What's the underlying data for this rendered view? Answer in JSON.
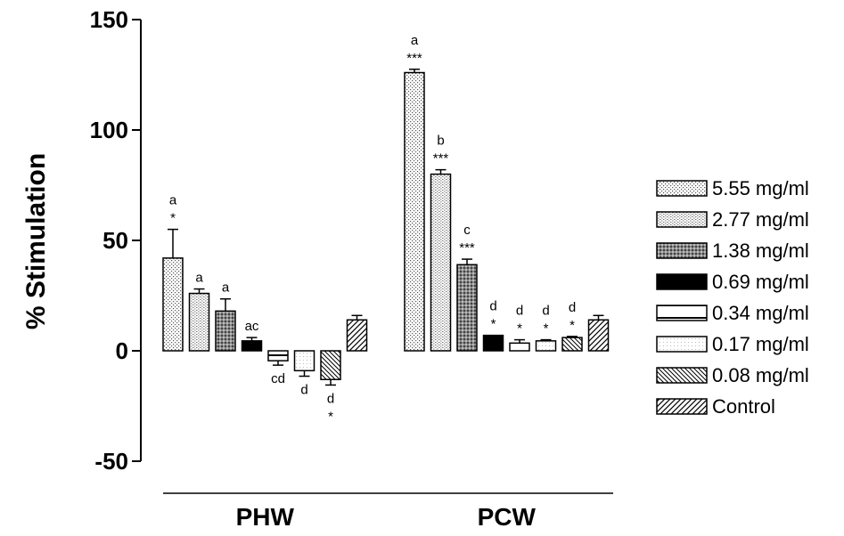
{
  "chart_data": {
    "type": "bar",
    "ylabel": "% Stimulation",
    "ylim": [
      -50,
      150
    ],
    "yticks": [
      "150",
      "100",
      "50",
      "0",
      "-50"
    ],
    "grid": false,
    "legend_position": "right",
    "categories": [
      "PHW",
      "PCW"
    ],
    "series": [
      {
        "name": "5.55 mg/ml",
        "values": [
          42,
          126
        ],
        "errors": [
          13,
          1.5
        ],
        "pattern": "dots-dense",
        "labels": [
          [
            "a",
            "*"
          ],
          [
            "a",
            "***"
          ]
        ]
      },
      {
        "name": "2.77 mg/ml",
        "values": [
          26,
          80
        ],
        "errors": [
          2,
          2
        ],
        "pattern": "dots",
        "labels": [
          [
            "a"
          ],
          [
            "b",
            "***"
          ]
        ]
      },
      {
        "name": "1.38 mg/ml",
        "values": [
          18,
          39
        ],
        "errors": [
          5.5,
          2.5
        ],
        "pattern": "dark-mottled",
        "labels": [
          [
            "a"
          ],
          [
            "c",
            "***"
          ]
        ]
      },
      {
        "name": "0.69 mg/ml",
        "values": [
          4.5,
          7
        ],
        "errors": [
          1.5,
          0
        ],
        "pattern": "solid-black",
        "labels": [
          [
            "ac"
          ],
          [
            "d",
            "*"
          ]
        ]
      },
      {
        "name": "0.34 mg/ml",
        "values": [
          -4.5,
          3.5
        ],
        "errors": [
          2,
          1.5
        ],
        "pattern": "horizontal-line",
        "labels": [
          [
            "cd"
          ],
          [
            "d",
            "*"
          ]
        ]
      },
      {
        "name": "0.17 mg/ml",
        "values": [
          -9,
          4.5
        ],
        "errors": [
          2.5,
          0.5
        ],
        "pattern": "dotted-outline",
        "labels": [
          [
            "d"
          ],
          [
            "d",
            "*"
          ]
        ]
      },
      {
        "name": "0.08 mg/ml",
        "values": [
          -13,
          6
        ],
        "errors": [
          2.5,
          0.5
        ],
        "pattern": "hatch-back",
        "labels": [
          [
            "d",
            "*"
          ],
          [
            "d",
            "*"
          ]
        ]
      },
      {
        "name": "Control",
        "values": [
          14,
          14
        ],
        "errors": [
          2,
          2
        ],
        "pattern": "hatch-forward",
        "labels": [
          [],
          []
        ]
      }
    ]
  }
}
